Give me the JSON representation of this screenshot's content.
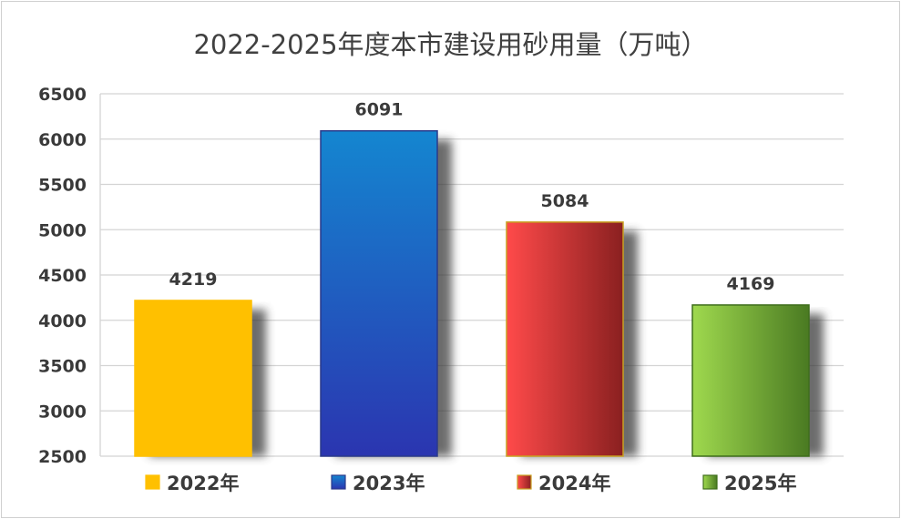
{
  "chart_data": {
    "type": "bar",
    "title": "2022-2025年度本市建设用砂用量（万吨）",
    "categories": [
      "2022年",
      "2023年",
      "2024年",
      "2025年"
    ],
    "values": [
      4219,
      6091,
      5084,
      4169
    ],
    "data_labels": [
      "4219",
      "6091",
      "5084",
      "4169"
    ],
    "ylim": [
      2500,
      6500
    ],
    "yticks": [
      2500,
      3000,
      3500,
      4000,
      4500,
      5000,
      5500,
      6000,
      6500
    ],
    "grid": true,
    "legend_position": "bottom",
    "colors": [
      {
        "light": "#ffc000",
        "dark": "#ffc000",
        "stroke": "#ffc000",
        "direction": "flat"
      },
      {
        "light": "#1486d0",
        "dark": "#2b35b0",
        "stroke": "#2b3a8a",
        "direction": "vertical"
      },
      {
        "light": "#ff4a4a",
        "dark": "#8a2020",
        "stroke": "#c9a020",
        "direction": "horizontal"
      },
      {
        "light": "#9fd94e",
        "dark": "#4a7a22",
        "stroke": "#3f6e1c",
        "direction": "horizontal"
      }
    ]
  }
}
